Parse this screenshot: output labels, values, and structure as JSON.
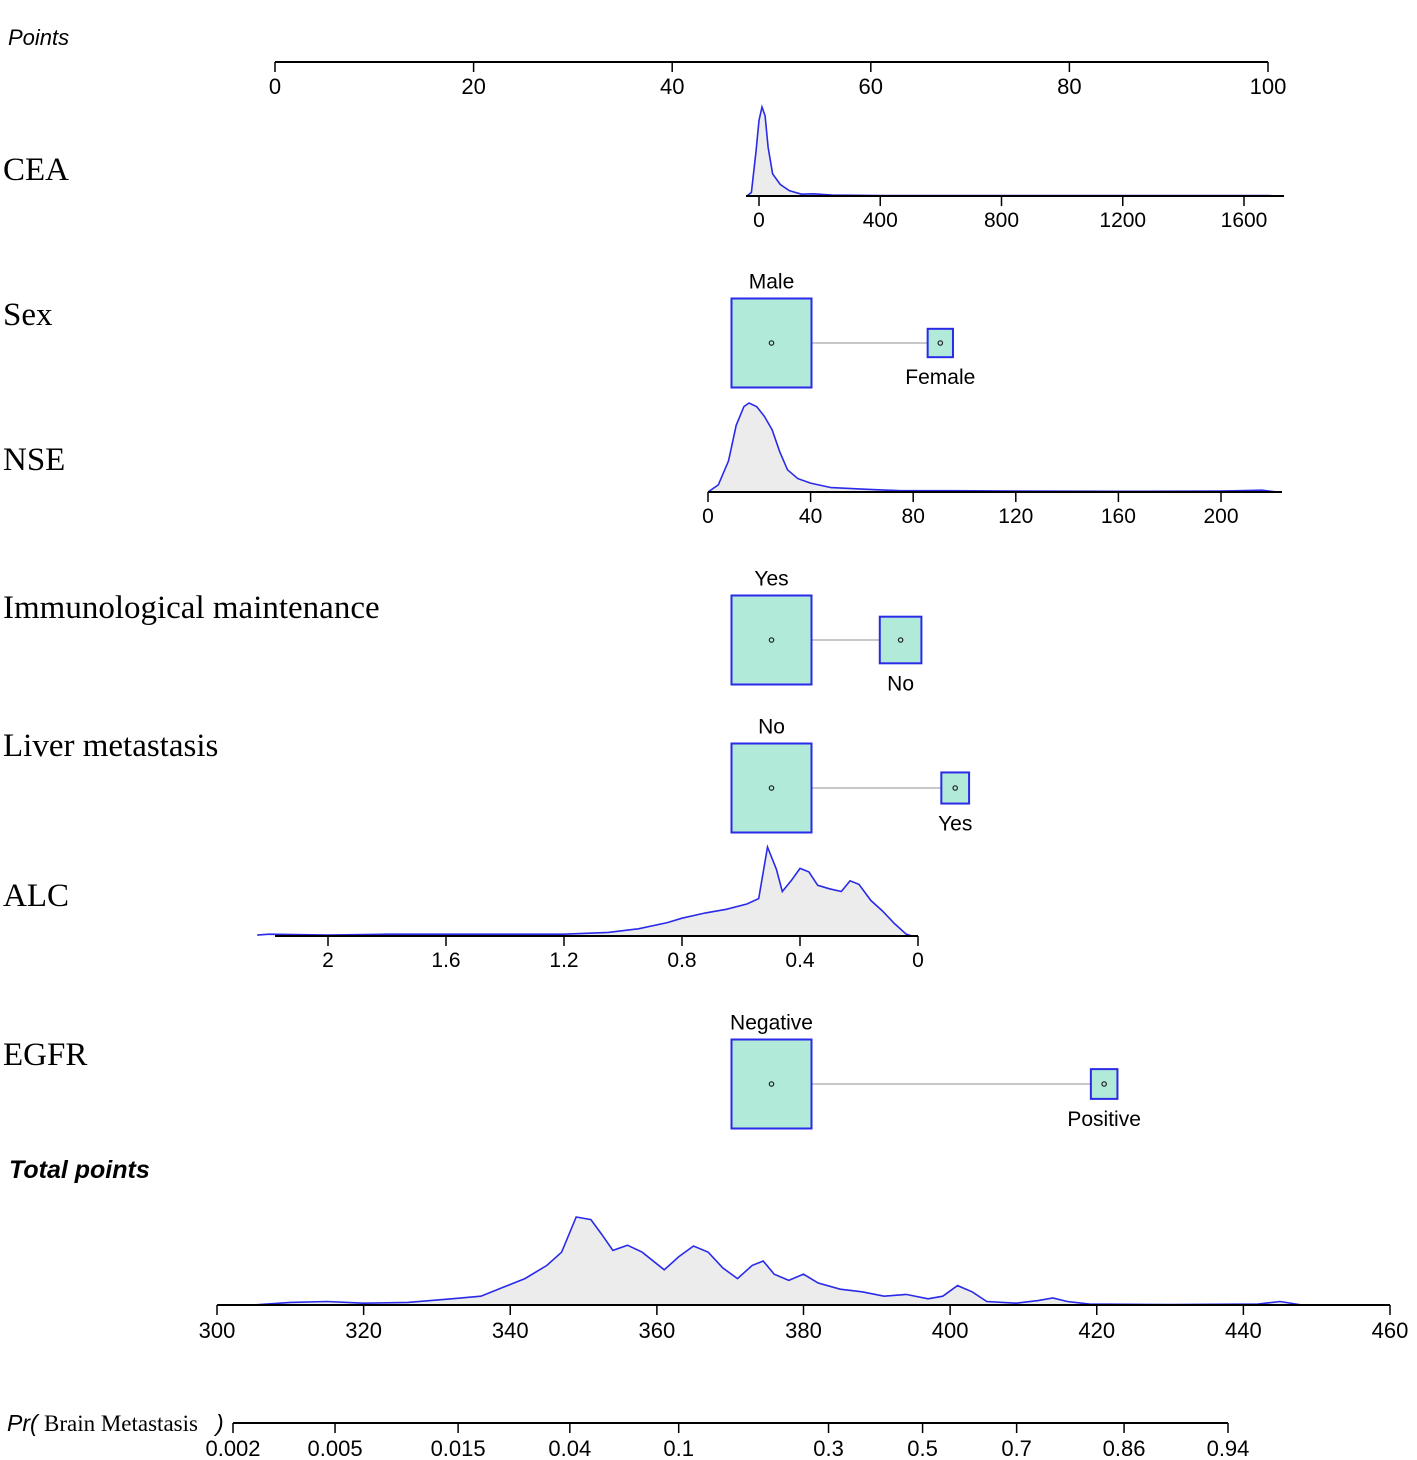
{
  "chart_data": {
    "type": "nomogram",
    "colors": {
      "density_line": "#2a2ae8",
      "density_fill": "#ececec",
      "box_fill": "#b2ead9",
      "box_stroke": "#2a2ae8",
      "connector": "#c8c8c8",
      "axis": "#000000"
    },
    "points_axis": {
      "label": "Points",
      "range": [
        0,
        100
      ],
      "ticks": [
        0,
        20,
        40,
        60,
        80,
        100
      ],
      "tick_labels": [
        "0",
        "20",
        "40",
        "60",
        "80",
        "100"
      ]
    },
    "variables": [
      {
        "name": "CEA",
        "type": "continuous",
        "ticks": [
          0,
          400,
          800,
          1200,
          1600
        ],
        "tick_labels": [
          "0",
          "400",
          "800",
          "1200",
          "1600"
        ],
        "density": [
          [
            -40,
            0
          ],
          [
            -25,
            0.04
          ],
          [
            -10,
            0.5
          ],
          [
            0,
            0.85
          ],
          [
            10,
            1
          ],
          [
            20,
            0.9
          ],
          [
            30,
            0.55
          ],
          [
            45,
            0.25
          ],
          [
            70,
            0.13
          ],
          [
            100,
            0.06
          ],
          [
            140,
            0.02
          ],
          [
            180,
            0.025
          ],
          [
            240,
            0.01
          ],
          [
            400,
            0.005
          ],
          [
            1000,
            0.004
          ],
          [
            1680,
            0.005
          ],
          [
            1730,
            0
          ]
        ]
      },
      {
        "name": "Sex",
        "type": "categorical",
        "levels": [
          {
            "label": "Male",
            "points": 50,
            "proportion": 0.9
          },
          {
            "label": "Female",
            "points": 67,
            "proportion": 0.1
          }
        ]
      },
      {
        "name": "NSE",
        "type": "continuous",
        "ticks": [
          0,
          40,
          80,
          120,
          160,
          200
        ],
        "tick_labels": [
          "0",
          "40",
          "80",
          "120",
          "160",
          "200"
        ],
        "density": [
          [
            0,
            0
          ],
          [
            4,
            0.08
          ],
          [
            8,
            0.35
          ],
          [
            11,
            0.75
          ],
          [
            14,
            0.96
          ],
          [
            16,
            1
          ],
          [
            19,
            0.96
          ],
          [
            22,
            0.85
          ],
          [
            25,
            0.7
          ],
          [
            28,
            0.45
          ],
          [
            31,
            0.25
          ],
          [
            35,
            0.15
          ],
          [
            40,
            0.1
          ],
          [
            48,
            0.05
          ],
          [
            55,
            0.04
          ],
          [
            62,
            0.03
          ],
          [
            75,
            0.015
          ],
          [
            95,
            0.015
          ],
          [
            120,
            0.01
          ],
          [
            160,
            0.008
          ],
          [
            200,
            0.01
          ],
          [
            216,
            0.02
          ],
          [
            222,
            0
          ]
        ]
      },
      {
        "name": "Immunological maintenance",
        "type": "categorical",
        "levels": [
          {
            "label": "Yes",
            "points": 50,
            "proportion": 0.73
          },
          {
            "label": "No",
            "points": 63,
            "proportion": 0.27
          }
        ]
      },
      {
        "name": "Liver metastasis",
        "type": "categorical",
        "levels": [
          {
            "label": "No",
            "points": 50,
            "proportion": 0.88
          },
          {
            "label": "Yes",
            "points": 68.5,
            "proportion": 0.12
          }
        ]
      },
      {
        "name": "ALC",
        "type": "continuous",
        "reversed": true,
        "ticks": [
          2,
          1.6,
          1.2,
          0.8,
          0.4,
          0
        ],
        "tick_labels": [
          "2",
          "1.6",
          "1.2",
          "0.8",
          "0.4",
          "0"
        ],
        "density": [
          [
            2.24,
            0.01
          ],
          [
            2.2,
            0.02
          ],
          [
            2.0,
            0.01
          ],
          [
            1.8,
            0.02
          ],
          [
            1.6,
            0.02
          ],
          [
            1.4,
            0.02
          ],
          [
            1.2,
            0.02
          ],
          [
            1.05,
            0.04
          ],
          [
            0.95,
            0.08
          ],
          [
            0.85,
            0.15
          ],
          [
            0.8,
            0.2
          ],
          [
            0.72,
            0.26
          ],
          [
            0.65,
            0.3
          ],
          [
            0.58,
            0.36
          ],
          [
            0.54,
            0.42
          ],
          [
            0.51,
            1
          ],
          [
            0.48,
            0.75
          ],
          [
            0.46,
            0.5
          ],
          [
            0.43,
            0.62
          ],
          [
            0.4,
            0.76
          ],
          [
            0.37,
            0.72
          ],
          [
            0.34,
            0.57
          ],
          [
            0.3,
            0.53
          ],
          [
            0.26,
            0.5
          ],
          [
            0.23,
            0.62
          ],
          [
            0.2,
            0.58
          ],
          [
            0.16,
            0.4
          ],
          [
            0.12,
            0.28
          ],
          [
            0.08,
            0.14
          ],
          [
            0.04,
            0.02
          ],
          [
            0.02,
            0
          ]
        ]
      },
      {
        "name": "EGFR",
        "type": "categorical",
        "levels": [
          {
            "label": "Negative",
            "points": 50,
            "proportion": 0.89
          },
          {
            "label": "Positive",
            "points": 83.5,
            "proportion": 0.11
          }
        ]
      }
    ],
    "total_points_axis": {
      "label": "Total points",
      "range": [
        300,
        460
      ],
      "ticks": [
        300,
        320,
        340,
        360,
        380,
        400,
        420,
        440,
        460
      ],
      "tick_labels": [
        "300",
        "320",
        "340",
        "360",
        "380",
        "400",
        "420",
        "440",
        "460"
      ],
      "density": [
        [
          305,
          0
        ],
        [
          310,
          0.03
        ],
        [
          315,
          0.04
        ],
        [
          320,
          0.02
        ],
        [
          326,
          0.03
        ],
        [
          332,
          0.07
        ],
        [
          336,
          0.1
        ],
        [
          339,
          0.2
        ],
        [
          342,
          0.3
        ],
        [
          345,
          0.45
        ],
        [
          347,
          0.6
        ],
        [
          349,
          1
        ],
        [
          351,
          0.97
        ],
        [
          352.5,
          0.8
        ],
        [
          354,
          0.62
        ],
        [
          356,
          0.68
        ],
        [
          358,
          0.6
        ],
        [
          361,
          0.4
        ],
        [
          363,
          0.55
        ],
        [
          365,
          0.67
        ],
        [
          367,
          0.6
        ],
        [
          369,
          0.42
        ],
        [
          371,
          0.3
        ],
        [
          373,
          0.45
        ],
        [
          374.5,
          0.5
        ],
        [
          376,
          0.35
        ],
        [
          378,
          0.28
        ],
        [
          380,
          0.35
        ],
        [
          382,
          0.25
        ],
        [
          385,
          0.18
        ],
        [
          388,
          0.15
        ],
        [
          391,
          0.1
        ],
        [
          394,
          0.12
        ],
        [
          397,
          0.07
        ],
        [
          399,
          0.1
        ],
        [
          401,
          0.22
        ],
        [
          403,
          0.15
        ],
        [
          405,
          0.04
        ],
        [
          409,
          0.02
        ],
        [
          412,
          0.05
        ],
        [
          414,
          0.08
        ],
        [
          416,
          0.04
        ],
        [
          419,
          0.01
        ],
        [
          430,
          0.005
        ],
        [
          442,
          0.01
        ],
        [
          445,
          0.04
        ],
        [
          448,
          0
        ]
      ]
    },
    "probability_axis": {
      "label_prefix": "Pr(",
      "label": "Brain Metastasis",
      "label_suffix": ")",
      "ticks": [
        0.002,
        0.005,
        0.015,
        0.04,
        0.1,
        0.3,
        0.5,
        0.7,
        0.86,
        0.94
      ],
      "tick_labels": [
        "0.002",
        "0.005",
        "0.015",
        "0.04",
        "0.1",
        "0.3",
        "0.5",
        "0.7",
        "0.86",
        "0.94"
      ]
    }
  }
}
